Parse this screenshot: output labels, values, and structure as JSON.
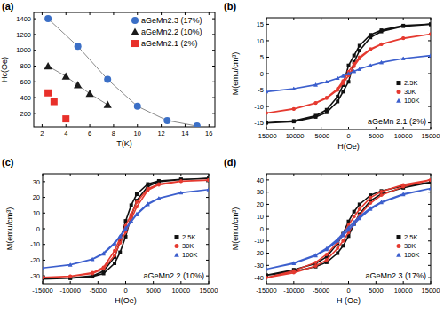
{
  "chart_data": [
    {
      "type": "line",
      "title": "(a)",
      "x_label": "T(K)",
      "y_label": "Hc(Oe)",
      "xlim": [
        1.3,
        16.5
      ],
      "ylim": [
        30,
        1480
      ],
      "xticks": [
        2,
        4,
        6,
        8,
        10,
        12,
        14,
        16
      ],
      "yticks": [
        200,
        400,
        600,
        800,
        1000,
        1200,
        1400
      ],
      "legend": "upper right",
      "series": [
        {
          "name": "aGeMn2.3 (17%)",
          "color": "#3b6fc6",
          "marker": "circle",
          "line_style": "solid",
          "x": [
            2.5,
            5,
            7.5,
            10,
            12.5,
            15
          ],
          "values": [
            1400,
            1050,
            630,
            290,
            110,
            40
          ]
        },
        {
          "name": "aGeMn2.2 (10%)",
          "color": "#1a1a1a",
          "marker": "triangle",
          "line_style": "solid",
          "x": [
            2.5,
            4,
            5,
            6,
            7.5
          ],
          "values": [
            800,
            670,
            560,
            450,
            310
          ]
        },
        {
          "name": "aGeMn2.1 (2%)",
          "color": "#e8302a",
          "marker": "square",
          "line_style": "none",
          "x": [
            2.5,
            3,
            4
          ],
          "values": [
            460,
            350,
            130
          ]
        }
      ]
    },
    {
      "type": "line",
      "title": "(b)",
      "x_label": "H(Oe)",
      "y_label": "M(emu/cm³)",
      "annotations": [
        "aGeMn 2.1 (2%)"
      ],
      "xlim": [
        -15000,
        15000
      ],
      "ylim": [
        -17,
        17
      ],
      "xticks": [
        -15000,
        -10000,
        -5000,
        0,
        5000,
        10000,
        15000
      ],
      "yticks": [
        -15,
        -10,
        -5,
        0,
        5,
        10,
        15
      ],
      "legend": "lower right",
      "x": [
        15000,
        10000,
        6000,
        4000,
        2000,
        1000,
        0,
        -1000,
        -2000,
        -4000,
        -6000,
        -10000,
        -15000,
        -10000,
        -6000,
        -4000,
        -2000,
        -1000,
        0,
        1000,
        2000,
        4000,
        6000,
        10000,
        15000
      ],
      "series": [
        {
          "name": "2.5K",
          "color": "#111111",
          "marker": "square",
          "line_style": "solid",
          "values": [
            15,
            14.6,
            13.2,
            11.8,
            8.5,
            5.5,
            2.5,
            -3.5,
            -7,
            -11,
            -12.8,
            -14.4,
            -15,
            -14.6,
            -13.2,
            -11.8,
            -8.5,
            -5.5,
            -2.5,
            3.5,
            7,
            11,
            12.8,
            14.4,
            15
          ]
        },
        {
          "name": "30K",
          "color": "#e53a30",
          "marker": "circle",
          "line_style": "solid",
          "values": [
            12,
            10.8,
            9,
            7.5,
            5,
            3,
            0.6,
            -2.2,
            -4.6,
            -7.3,
            -8.9,
            -10.7,
            -12,
            -10.8,
            -9,
            -7.5,
            -5,
            -3,
            -0.6,
            2.2,
            4.6,
            7.3,
            8.9,
            10.7,
            12
          ]
        },
        {
          "name": "100K",
          "color": "#3c5fcd",
          "marker": "triangle",
          "line_style": "solid",
          "values": [
            5.5,
            4.6,
            3.4,
            2.5,
            1.4,
            0.7,
            0,
            -0.7,
            -1.4,
            -2.5,
            -3.4,
            -4.6,
            -5.5,
            -4.6,
            -3.4,
            -2.5,
            -1.4,
            -0.7,
            0,
            0.7,
            1.4,
            2.5,
            3.4,
            4.6,
            5.5
          ]
        }
      ]
    },
    {
      "type": "line",
      "title": "(c)",
      "x_label": "H(Oe)",
      "y_label": "M(emu/cm³)",
      "annotations": [
        "aGeMn2.2 (10%)"
      ],
      "xlim": [
        -15000,
        15000
      ],
      "ylim": [
        -35,
        35
      ],
      "xticks": [
        -15000,
        -10000,
        -5000,
        0,
        5000,
        10000,
        15000
      ],
      "yticks": [
        -30,
        -20,
        -10,
        0,
        10,
        20,
        30
      ],
      "legend": "lower right",
      "x": [
        15000,
        10000,
        6000,
        4000,
        2000,
        1000,
        0,
        -1000,
        -2000,
        -4000,
        -6000,
        -10000,
        -15000,
        -10000,
        -6000,
        -4000,
        -2000,
        -1000,
        0,
        1000,
        2000,
        4000,
        6000,
        10000,
        15000
      ],
      "series": [
        {
          "name": "2.5K",
          "color": "#111111",
          "marker": "square",
          "line_style": "solid",
          "values": [
            32,
            31.5,
            30.5,
            28.5,
            22,
            15,
            5,
            -8,
            -18,
            -27,
            -30,
            -31.3,
            -32,
            -31.5,
            -30.5,
            -28.5,
            -22,
            -15,
            -5,
            8,
            18,
            27,
            30,
            31.3,
            32
          ]
        },
        {
          "name": "30K",
          "color": "#e53a30",
          "marker": "circle",
          "line_style": "solid",
          "values": [
            31,
            30.3,
            28.5,
            25.5,
            17,
            9,
            2,
            -6,
            -14,
            -24.5,
            -28,
            -30.2,
            -31,
            -30.3,
            -28.5,
            -25.5,
            -17,
            -9,
            -2,
            6,
            14,
            24.5,
            28,
            30.2,
            31
          ]
        },
        {
          "name": "100K",
          "color": "#3c5fcd",
          "marker": "triangle",
          "line_style": "solid",
          "values": [
            25,
            23,
            19.5,
            16,
            9.5,
            5,
            0.5,
            -4.5,
            -9,
            -15.5,
            -19.3,
            -22.9,
            -25,
            -23,
            -19.5,
            -16,
            -9.5,
            -5,
            -0.5,
            4.5,
            9,
            15.5,
            19.3,
            22.9,
            25
          ]
        }
      ]
    },
    {
      "type": "line",
      "title": "(d)",
      "x_label": "H (Oe)",
      "y_label": "M(emu/cm³)",
      "annotations": [
        "aGeMn2.3 (17%)"
      ],
      "xlim": [
        -15000,
        15000
      ],
      "ylim": [
        -45,
        45
      ],
      "xticks": [
        -15000,
        -10000,
        -5000,
        0,
        5000,
        10000,
        15000
      ],
      "yticks": [
        -40,
        -30,
        -20,
        -10,
        0,
        10,
        20,
        30,
        40
      ],
      "legend": "lower right",
      "x": [
        15000,
        10000,
        6000,
        4000,
        2000,
        1000,
        0,
        -1000,
        -2000,
        -4000,
        -6000,
        -10000,
        -15000,
        -10000,
        -6000,
        -4000,
        -2000,
        -1000,
        0,
        1000,
        2000,
        4000,
        6000,
        10000,
        15000
      ],
      "series": [
        {
          "name": "2.5K",
          "color": "#111111",
          "marker": "square",
          "line_style": "solid",
          "values": [
            38,
            35,
            31,
            27.5,
            20,
            14,
            6,
            -4,
            -12,
            -23,
            -28.5,
            -33.5,
            -38,
            -35,
            -31,
            -27.5,
            -20,
            -14,
            -6,
            4,
            12,
            23,
            28.5,
            33.5,
            38
          ]
        },
        {
          "name": "30K",
          "color": "#e53a30",
          "marker": "circle",
          "line_style": "solid",
          "values": [
            40,
            36,
            30.5,
            25.5,
            16,
            10,
            3,
            -4.5,
            -11,
            -21,
            -27.5,
            -34.5,
            -40,
            -36,
            -30.5,
            -25.5,
            -16,
            -10,
            -3,
            4.5,
            11,
            21,
            27.5,
            34.5,
            40
          ]
        },
        {
          "name": "100K",
          "color": "#3c5fcd",
          "marker": "triangle",
          "line_style": "solid",
          "values": [
            33,
            28.5,
            22,
            17,
            10,
            5.5,
            1,
            -3.5,
            -8.5,
            -16,
            -21.5,
            -28,
            -33,
            -28.5,
            -22,
            -17,
            -10,
            -5.5,
            -1,
            3.5,
            8.5,
            16,
            21.5,
            28,
            33
          ]
        }
      ]
    }
  ]
}
